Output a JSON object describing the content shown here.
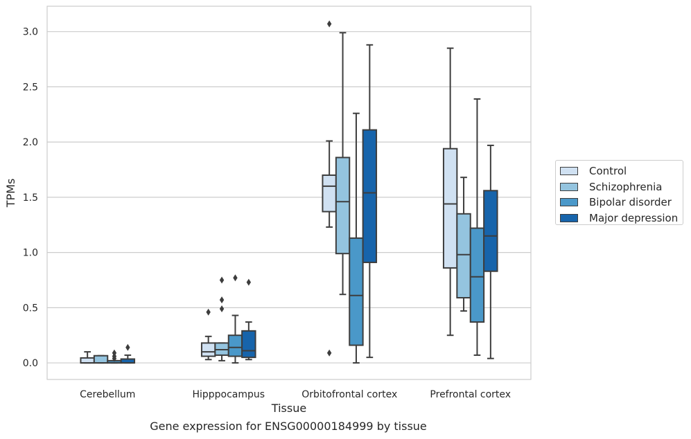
{
  "caption": "Gene expression for ENSG00000184999 by tissue",
  "chart_data": {
    "type": "box",
    "xlabel": "Tissue",
    "ylabel": "TPMs",
    "ylim": [
      -0.15,
      3.23
    ],
    "yticks": [
      0.0,
      0.5,
      1.0,
      1.5,
      2.0,
      2.5,
      3.0
    ],
    "ytick_labels": [
      "0.0",
      "0.5",
      "1.0",
      "1.5",
      "2.0",
      "2.5",
      "3.0"
    ],
    "grid": "horizontal",
    "legend_position": "right",
    "categories": [
      "Cerebellum",
      "Hipppocampus",
      "Orbitofrontal cortex",
      "Prefrontal cortex"
    ],
    "series": [
      {
        "name": "Control",
        "color": "#d0e1f2",
        "boxes": [
          {
            "whislo": 0.0,
            "q1": 0.0,
            "med": 0.0,
            "q3": 0.045,
            "whishi": 0.1,
            "fliers": []
          },
          {
            "whislo": 0.03,
            "q1": 0.06,
            "med": 0.1,
            "q3": 0.18,
            "whishi": 0.24,
            "fliers": [
              0.46
            ]
          },
          {
            "whislo": 1.23,
            "q1": 1.37,
            "med": 1.6,
            "q3": 1.7,
            "whishi": 2.01,
            "fliers": [
              3.07,
              0.09
            ]
          },
          {
            "whislo": 0.25,
            "q1": 0.86,
            "med": 1.44,
            "q3": 1.94,
            "whishi": 2.85,
            "fliers": []
          }
        ]
      },
      {
        "name": "Schizophrenia",
        "color": "#94c4df",
        "boxes": [
          {
            "whislo": 0.0,
            "q1": 0.0,
            "med": 0.0,
            "q3": 0.065,
            "whishi": 0.065,
            "fliers": []
          },
          {
            "whislo": 0.02,
            "q1": 0.07,
            "med": 0.12,
            "q3": 0.18,
            "whishi": 0.18,
            "fliers": [
              0.75,
              0.57,
              0.49
            ]
          },
          {
            "whislo": 0.62,
            "q1": 0.99,
            "med": 1.46,
            "q3": 1.86,
            "whishi": 2.99,
            "fliers": []
          },
          {
            "whislo": 0.47,
            "q1": 0.59,
            "med": 0.98,
            "q3": 1.35,
            "whishi": 1.68,
            "fliers": []
          }
        ]
      },
      {
        "name": "Bipolar disorder",
        "color": "#4a98c9",
        "boxes": [
          {
            "whislo": 0.0,
            "q1": 0.0,
            "med": 0.0,
            "q3": 0.02,
            "whishi": 0.02,
            "fliers": [
              0.09,
              0.06,
              0.04
            ]
          },
          {
            "whislo": 0.0,
            "q1": 0.06,
            "med": 0.14,
            "q3": 0.25,
            "whishi": 0.43,
            "fliers": [
              0.77
            ]
          },
          {
            "whislo": 0.0,
            "q1": 0.16,
            "med": 0.61,
            "q3": 1.13,
            "whishi": 2.26,
            "fliers": []
          },
          {
            "whislo": 0.07,
            "q1": 0.37,
            "med": 0.78,
            "q3": 1.22,
            "whishi": 2.39,
            "fliers": []
          }
        ]
      },
      {
        "name": "Major depression",
        "color": "#1764ab",
        "boxes": [
          {
            "whislo": 0.0,
            "q1": 0.0,
            "med": 0.0,
            "q3": 0.035,
            "whishi": 0.07,
            "fliers": [
              0.14
            ]
          },
          {
            "whislo": 0.03,
            "q1": 0.05,
            "med": 0.11,
            "q3": 0.29,
            "whishi": 0.37,
            "fliers": [
              0.73
            ]
          },
          {
            "whislo": 0.05,
            "q1": 0.91,
            "med": 1.54,
            "q3": 2.11,
            "whishi": 2.88,
            "fliers": []
          },
          {
            "whislo": 0.04,
            "q1": 0.83,
            "med": 1.15,
            "q3": 1.56,
            "whishi": 1.97,
            "fliers": []
          }
        ]
      }
    ]
  }
}
